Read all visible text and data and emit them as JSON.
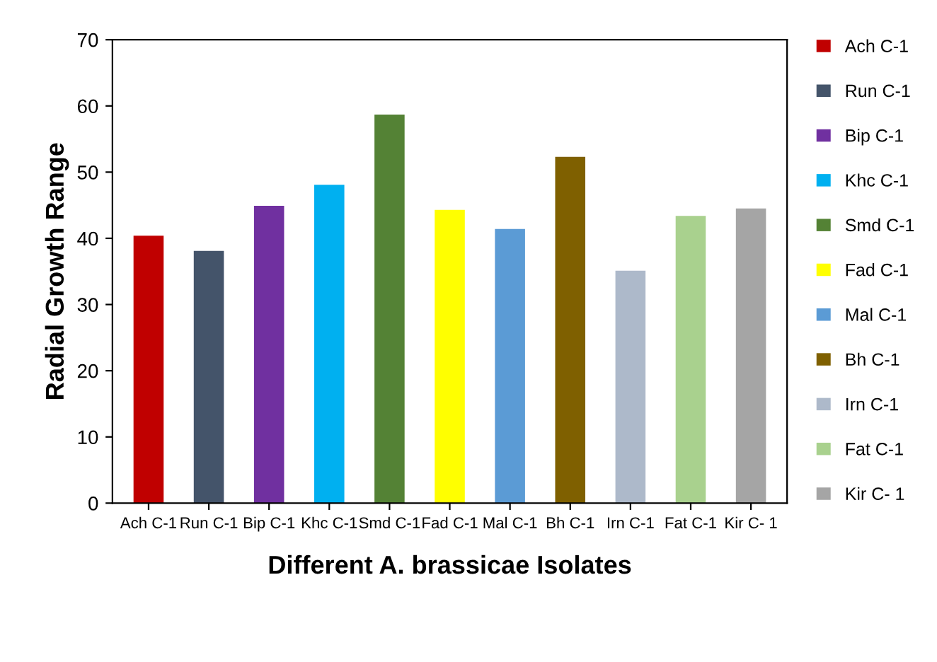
{
  "chart_data": {
    "type": "bar",
    "xlabel": "Different A. brassicae Isolates",
    "ylabel": "Radial Growth Range",
    "categories": [
      "Ach C-1",
      "Run C-1",
      "Bip C-1",
      "Khc C-1",
      "Smd C-1",
      "Fad C-1",
      "Mal C-1",
      "Bh C-1",
      "Irn C-1",
      "Fat C-1",
      "Kir C- 1"
    ],
    "series": [
      {
        "name": "Ach C-1",
        "color": "#c00000",
        "values": [
          40.4,
          null,
          null,
          null,
          null,
          null,
          null,
          null,
          null,
          null,
          null
        ]
      },
      {
        "name": "Run C-1",
        "color": "#44546a",
        "values": [
          null,
          38.1,
          null,
          null,
          null,
          null,
          null,
          null,
          null,
          null,
          null
        ]
      },
      {
        "name": "Bip C-1",
        "color": "#7030a0",
        "values": [
          null,
          null,
          44.9,
          null,
          null,
          null,
          null,
          null,
          null,
          null,
          null
        ]
      },
      {
        "name": "Khc C-1",
        "color": "#00b0f0",
        "values": [
          null,
          null,
          null,
          48.1,
          null,
          null,
          null,
          null,
          null,
          null,
          null
        ]
      },
      {
        "name": "Smd C-1",
        "color": "#548235",
        "values": [
          null,
          null,
          null,
          null,
          58.7,
          null,
          null,
          null,
          null,
          null,
          null
        ]
      },
      {
        "name": "Fad C-1",
        "color": "#ffff00",
        "values": [
          null,
          null,
          null,
          null,
          null,
          44.3,
          null,
          null,
          null,
          null,
          null
        ]
      },
      {
        "name": "Mal C-1",
        "color": "#5b9bd5",
        "values": [
          null,
          null,
          null,
          null,
          null,
          null,
          41.4,
          null,
          null,
          null,
          null
        ]
      },
      {
        "name": "Bh C-1",
        "color": "#7f6000",
        "values": [
          null,
          null,
          null,
          null,
          null,
          null,
          null,
          52.3,
          null,
          null,
          null
        ]
      },
      {
        "name": "Irn C-1",
        "color": "#adb9ca",
        "values": [
          null,
          null,
          null,
          null,
          null,
          null,
          null,
          null,
          35.1,
          null,
          null
        ]
      },
      {
        "name": "Fat C-1",
        "color": "#a9d18e",
        "values": [
          null,
          null,
          null,
          null,
          null,
          null,
          null,
          null,
          null,
          43.4,
          null
        ]
      },
      {
        "name": "Kir C- 1",
        "color": "#a5a5a5",
        "values": [
          null,
          null,
          null,
          null,
          null,
          null,
          null,
          null,
          null,
          null,
          44.5
        ]
      }
    ],
    "ylim": [
      0,
      70
    ],
    "yticks": [
      0,
      10,
      20,
      30,
      40,
      50,
      60,
      70
    ],
    "grid": false,
    "legend": "right"
  }
}
